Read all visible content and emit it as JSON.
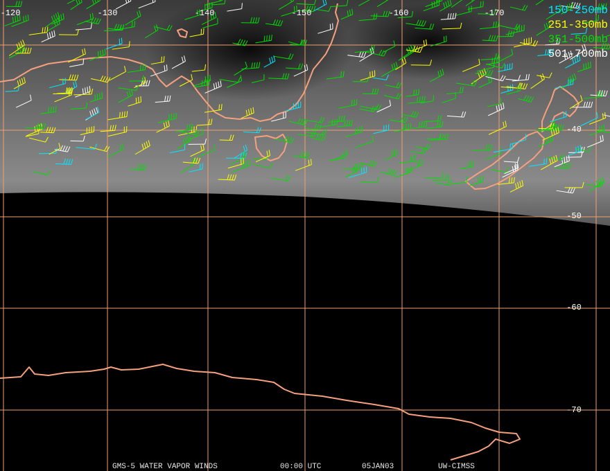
{
  "map": {
    "longitude_labels": [
      "-120",
      "-130",
      "-140",
      "-150",
      "-160",
      "-170"
    ],
    "latitude_labels": [
      "-40",
      "-50",
      "-60",
      "-70"
    ],
    "legend": [
      {
        "label": "150-250mb",
        "color": "#00e8ff"
      },
      {
        "label": "251-350mb",
        "color": "#ffff00"
      },
      {
        "label": "351-500mb",
        "color": "#00e000"
      },
      {
        "label": "501-700mb",
        "color": "#ffffff"
      }
    ],
    "footer": [
      "GMS-5 WATER VAPOR WINDS",
      "00:00 UTC",
      "05JAN03",
      "UW-CIMSS"
    ]
  }
}
